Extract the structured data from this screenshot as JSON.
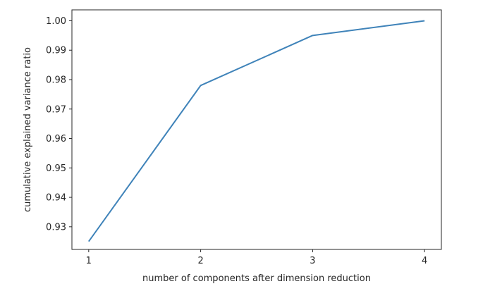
{
  "chart_data": {
    "type": "line",
    "title": "",
    "xlabel": "number of components after dimension reduction",
    "ylabel": "cumulative explained variance ratio",
    "x": [
      1,
      2,
      3,
      4
    ],
    "series": [
      {
        "values": [
          0.925,
          0.978,
          0.995,
          1.0
        ],
        "color": "#3f83b9"
      }
    ],
    "xlim": [
      0.85,
      4.15
    ],
    "ylim": [
      0.9223,
      1.0037
    ],
    "xticks": [
      1,
      2,
      3,
      4
    ],
    "xtick_labels": [
      "1",
      "2",
      "3",
      "4"
    ],
    "yticks": [
      0.93,
      0.94,
      0.95,
      0.96,
      0.97,
      0.98,
      0.99,
      1.0
    ],
    "ytick_labels": [
      "0.93",
      "0.94",
      "0.95",
      "0.96",
      "0.97",
      "0.98",
      "0.99",
      "1.00"
    ],
    "grid": false,
    "legend": "none"
  }
}
